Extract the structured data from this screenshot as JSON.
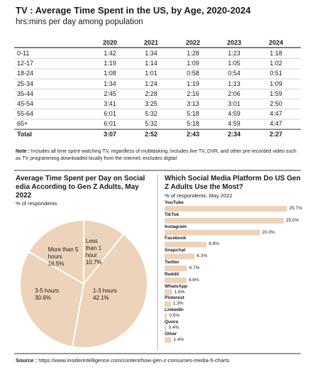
{
  "header": {
    "title": "TV : Average Time Spent in the US, by Age, 2020-2024",
    "subtitle": "hrs:mins per day among population"
  },
  "table": {
    "columns": [
      "2020",
      "2021",
      "2022",
      "2023",
      "2024"
    ],
    "rows": [
      [
        "0-11",
        "1:42",
        "1:34",
        "1:28",
        "1:23",
        "1:18"
      ],
      [
        "12-17",
        "1:19",
        "1:14",
        "1:09",
        "1:05",
        "1:02"
      ],
      [
        "18-24",
        "1:08",
        "1:01",
        "0:58",
        "0:54",
        "0:51"
      ],
      [
        "25-34",
        "1:34",
        "1:24",
        "1:19",
        "1:13",
        "1:09"
      ],
      [
        "35-44",
        "2:45",
        "2:28",
        "2:16",
        "2:06",
        "1:59"
      ],
      [
        "45-54",
        "3:41",
        "3:25",
        "3:13",
        "3:01",
        "2:50"
      ],
      [
        "55-64",
        "6:01",
        "5:32",
        "5:18",
        "4:59",
        "4:47"
      ],
      [
        "65+",
        "6:01",
        "5:32",
        "5:18",
        "4:59",
        "4:47"
      ]
    ],
    "total": [
      "Total",
      "3:07",
      "2:52",
      "2:43",
      "2:34",
      "2:27"
    ]
  },
  "note": {
    "label": "Note :",
    "text": "Includes all time spent watching TV, regardless of multitasking; includes live TV, DVR, and other pre-recorded video such as TV programming downloaded locally from the internet; excludes digital"
  },
  "chart_data": [
    {
      "type": "pie",
      "title": "Average Time Spent per Day on Social edia According to Gen Z Adults, May 2022",
      "subtitle": "% of respondents",
      "categories": [
        "Less than 1 hour",
        "1-3 hours",
        "3-5 hours",
        "More than 5 hours"
      ],
      "values": [
        10.7,
        42.1,
        30.6,
        16.5
      ],
      "value_labels": [
        "10.7%",
        "42.1%",
        "30.6%",
        "16.5%"
      ],
      "color": "#ecd3b9"
    },
    {
      "type": "bar",
      "orientation": "horizontal",
      "title": "Which Social Media Platform Do US Gen Z Adults Use the Most?",
      "subtitle": "% of respondents, May 2022",
      "categories": [
        "YouTube",
        "TikTok",
        "Instagram",
        "Facebook",
        "Snapchat",
        "Twitter",
        "Reddit",
        "WhatsApp",
        "Pinterest",
        "LinkedIn",
        "Quora",
        "Other"
      ],
      "values": [
        25.7,
        25.0,
        20.0,
        8.8,
        6.3,
        4.7,
        4.6,
        1.6,
        1.3,
        0.5,
        0.4,
        1.4
      ],
      "value_labels": [
        "25.7%",
        "25.0%",
        "20.0%",
        "8.8%",
        "6.3%",
        "4.7%",
        "4.6%",
        "1.6%",
        "1.3%",
        "0.5%",
        "0.4%",
        "1.4%"
      ],
      "xlim": [
        0,
        28
      ],
      "color": "#ecd3b9"
    }
  ],
  "source": {
    "label": "Source :",
    "text": "https://www.insiderintelligence.com/content/how-gen-z-consumes-media-5-charts"
  }
}
